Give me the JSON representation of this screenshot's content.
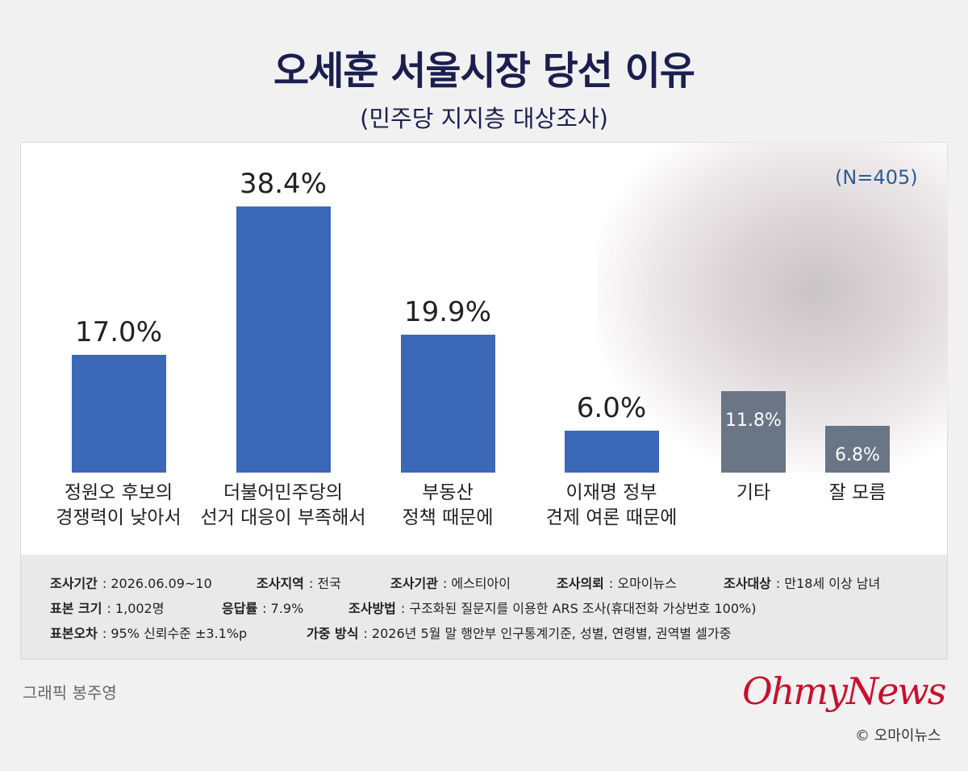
{
  "chart_data": {
    "type": "bar",
    "title": "오세훈 서울시장 당선 이유",
    "subtitle": "(민주당 지지층 대상조사)",
    "note": "(N=405)",
    "categories": [
      "정원오 후보의\n경쟁력이 낮아서",
      "더불어민주당의\n선거 대응이 부족해서",
      "부동산\n정책 때문에",
      "이재명 정부\n견제 여론 때문에",
      "기타",
      "잘 모름"
    ],
    "values": [
      17.0,
      38.4,
      19.9,
      6.0,
      11.8,
      6.8
    ],
    "value_labels": [
      "17.0%",
      "38.4%",
      "19.9%",
      "6.0%",
      "11.8%",
      "6.8%"
    ],
    "colors": [
      "#3b68b7",
      "#3b68b7",
      "#3b68b7",
      "#3b68b7",
      "#6a7585",
      "#6a7585"
    ]
  },
  "survey_info": [
    [
      {
        "label": "조사기간",
        "value": ": 2026.06.09~10"
      },
      {
        "label": "조사지역",
        "value": ": 전국"
      },
      {
        "label": "조사기관",
        "value": ": 에스티아이"
      },
      {
        "label": "조사의뢰",
        "value": ": 오마이뉴스"
      },
      {
        "label": "조사대상",
        "value": ": 만18세 이상 남녀"
      }
    ],
    [
      {
        "label": "표본 크기",
        "value": ": 1,002명"
      },
      {
        "label": "응답률",
        "value": ": 7.9%"
      },
      {
        "label": "조사방법",
        "value": ": 구조화된 질문지를 이용한 ARS 조사(휴대전화 가상번호 100%)"
      }
    ],
    [
      {
        "label": "표본오차",
        "value": ": 95% 신뢰수준 ±3.1%p"
      },
      {
        "label": "가중 방식",
        "value": ": 2026년 5월 말 행안부 인구통계기준, 성별, 연령별, 권역별 셀가중"
      }
    ]
  ],
  "credit": "그래픽 봉주영",
  "logo": "OhmyNews",
  "copyright": "© 오마이뉴스"
}
